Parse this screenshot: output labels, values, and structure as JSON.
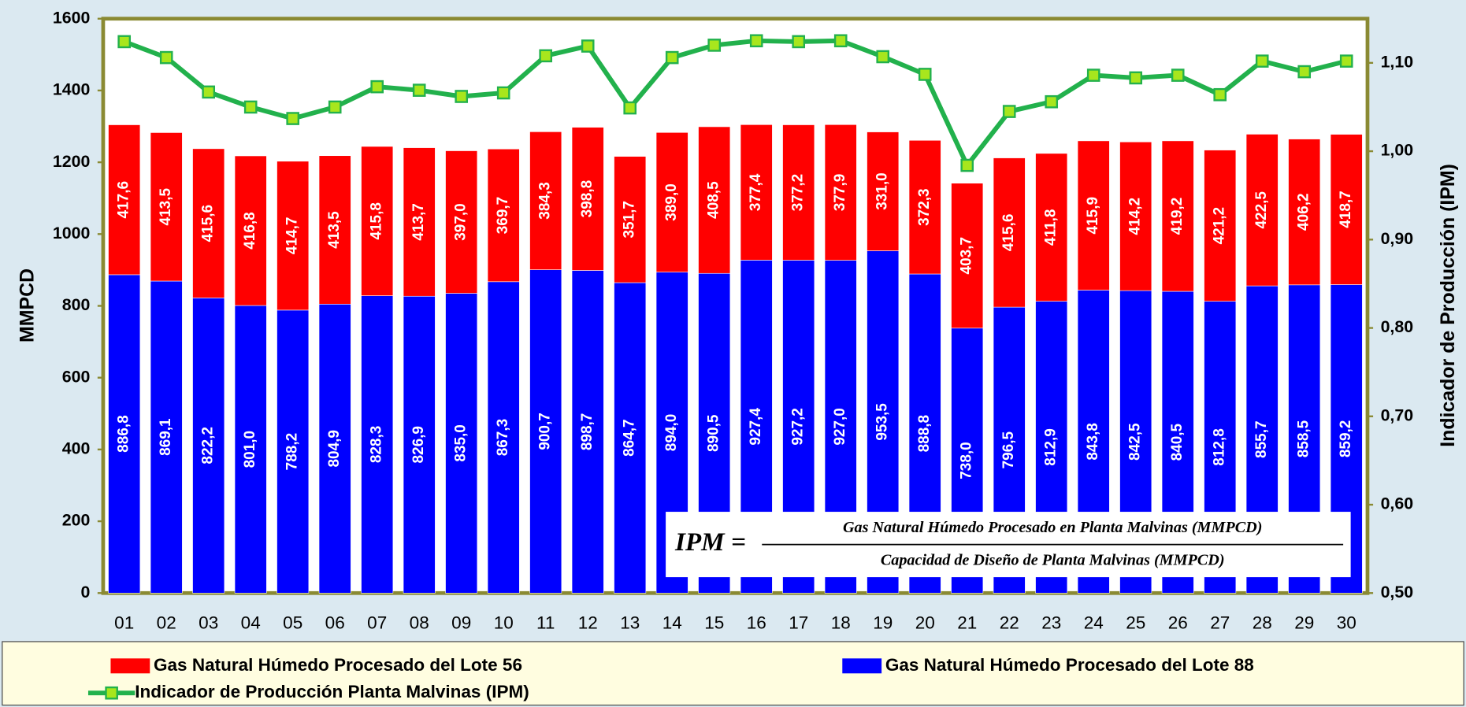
{
  "chart_data": {
    "type": "bar",
    "categories": [
      "01",
      "02",
      "03",
      "04",
      "05",
      "06",
      "07",
      "08",
      "09",
      "10",
      "11",
      "12",
      "13",
      "14",
      "15",
      "16",
      "17",
      "18",
      "19",
      "20",
      "21",
      "22",
      "23",
      "24",
      "25",
      "26",
      "27",
      "28",
      "29",
      "30"
    ],
    "series": [
      {
        "name": "Gas Natural Húmedo Procesado del Lote 56",
        "type": "bar",
        "color": "#ff0000",
        "values": [
          417.6,
          413.5,
          415.6,
          416.8,
          414.7,
          413.5,
          415.8,
          413.7,
          397.0,
          369.7,
          384.3,
          398.8,
          351.7,
          389.0,
          408.5,
          377.4,
          377.2,
          377.9,
          331.0,
          372.3,
          403.7,
          415.6,
          411.8,
          415.9,
          414.2,
          419.2,
          421.2,
          422.5,
          406.2,
          418.7
        ],
        "value_labels": [
          "417,6",
          "413,5",
          "415,6",
          "416,8",
          "414,7",
          "413,5",
          "415,8",
          "413,7",
          "397,0",
          "369,7",
          "384,3",
          "398,8",
          "351,7",
          "389,0",
          "408,5",
          "377,4",
          "377,2",
          "377,9",
          "331,0",
          "372,3",
          "403,7",
          "415,6",
          "411,8",
          "415,9",
          "414,2",
          "419,2",
          "421,2",
          "422,5",
          "406,2",
          "418,7"
        ]
      },
      {
        "name": "Gas Natural Húmedo Procesado del Lote 88",
        "type": "bar",
        "color": "#0000ff",
        "values": [
          886.8,
          869.1,
          822.2,
          801.0,
          788.2,
          804.9,
          828.3,
          826.9,
          835.0,
          867.3,
          900.7,
          898.7,
          864.7,
          894.0,
          890.5,
          927.4,
          927.2,
          927.0,
          953.5,
          888.8,
          738.0,
          796.5,
          812.9,
          843.8,
          842.5,
          840.5,
          812.8,
          855.7,
          858.5,
          859.2
        ],
        "value_labels": [
          "886,8",
          "869,1",
          "822,2",
          "801,0",
          "788,2",
          "804,9",
          "828,3",
          "826,9",
          "835,0",
          "867,3",
          "900,7",
          "898,7",
          "864,7",
          "894,0",
          "890,5",
          "927,4",
          "927,2",
          "927,0",
          "953,5",
          "888,8",
          "738,0",
          "796,5",
          "812,9",
          "843,8",
          "842,5",
          "840,5",
          "812,8",
          "855,7",
          "858,5",
          "859,2"
        ]
      },
      {
        "name": "Indicador de Producción Planta Malvinas (IPM)",
        "type": "line",
        "axis": "y2",
        "color": "#22b14c",
        "marker_color": "#a8e61d",
        "values": [
          1.124,
          1.106,
          1.067,
          1.05,
          1.037,
          1.05,
          1.073,
          1.069,
          1.062,
          1.066,
          1.108,
          1.119,
          1.049,
          1.106,
          1.12,
          1.125,
          1.124,
          1.125,
          1.107,
          1.087,
          0.984,
          1.045,
          1.056,
          1.086,
          1.083,
          1.086,
          1.064,
          1.102,
          1.09,
          1.102
        ]
      }
    ],
    "y_label": "MMPCD",
    "y2_label": "Indicador de Producción (IPM)",
    "ylim": [
      0,
      1600
    ],
    "yticks": [
      0,
      200,
      400,
      600,
      800,
      1000,
      1200,
      1400,
      1600
    ],
    "y2lim": [
      0.5,
      1.15
    ],
    "y2ticks": [
      {
        "value": 0.5,
        "label": "0,50"
      },
      {
        "value": 0.6,
        "label": "0,60"
      },
      {
        "value": 0.7,
        "label": "0,70"
      },
      {
        "value": 0.8,
        "label": "0,80"
      },
      {
        "value": 0.9,
        "label": "0,90"
      },
      {
        "value": 1.0,
        "label": "1,00"
      },
      {
        "value": 1.1,
        "label": "1,10"
      }
    ],
    "formula": {
      "lhs": "IPM =",
      "numerator": "Gas Natural Húmedo Procesado en Planta Malvinas (MMPCD)",
      "denominator": "Capacidad de Diseño de Planta Malvinas (MMPCD)"
    },
    "legend": "bottom"
  }
}
